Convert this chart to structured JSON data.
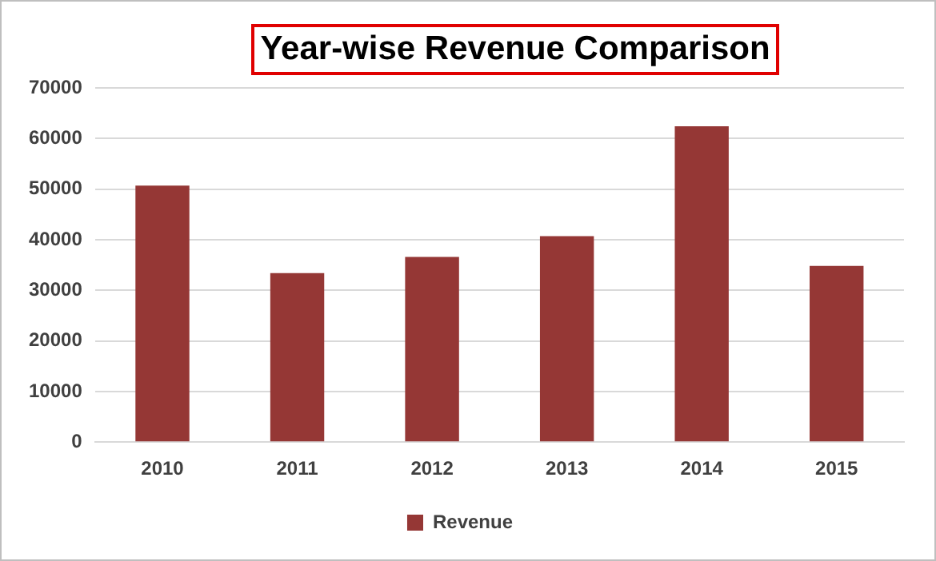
{
  "chart_data": {
    "type": "bar",
    "title": "Year-wise Revenue Comparison",
    "categories": [
      "2010",
      "2011",
      "2012",
      "2013",
      "2014",
      "2015"
    ],
    "series": [
      {
        "name": "Revenue",
        "color": "#953735",
        "values": [
          50700,
          33400,
          36600,
          40700,
          62400,
          34800
        ]
      }
    ],
    "ylim": [
      0,
      70000
    ],
    "yticks": [
      0,
      10000,
      20000,
      30000,
      40000,
      50000,
      60000,
      70000
    ],
    "grid": "y",
    "legend": "bottom"
  }
}
